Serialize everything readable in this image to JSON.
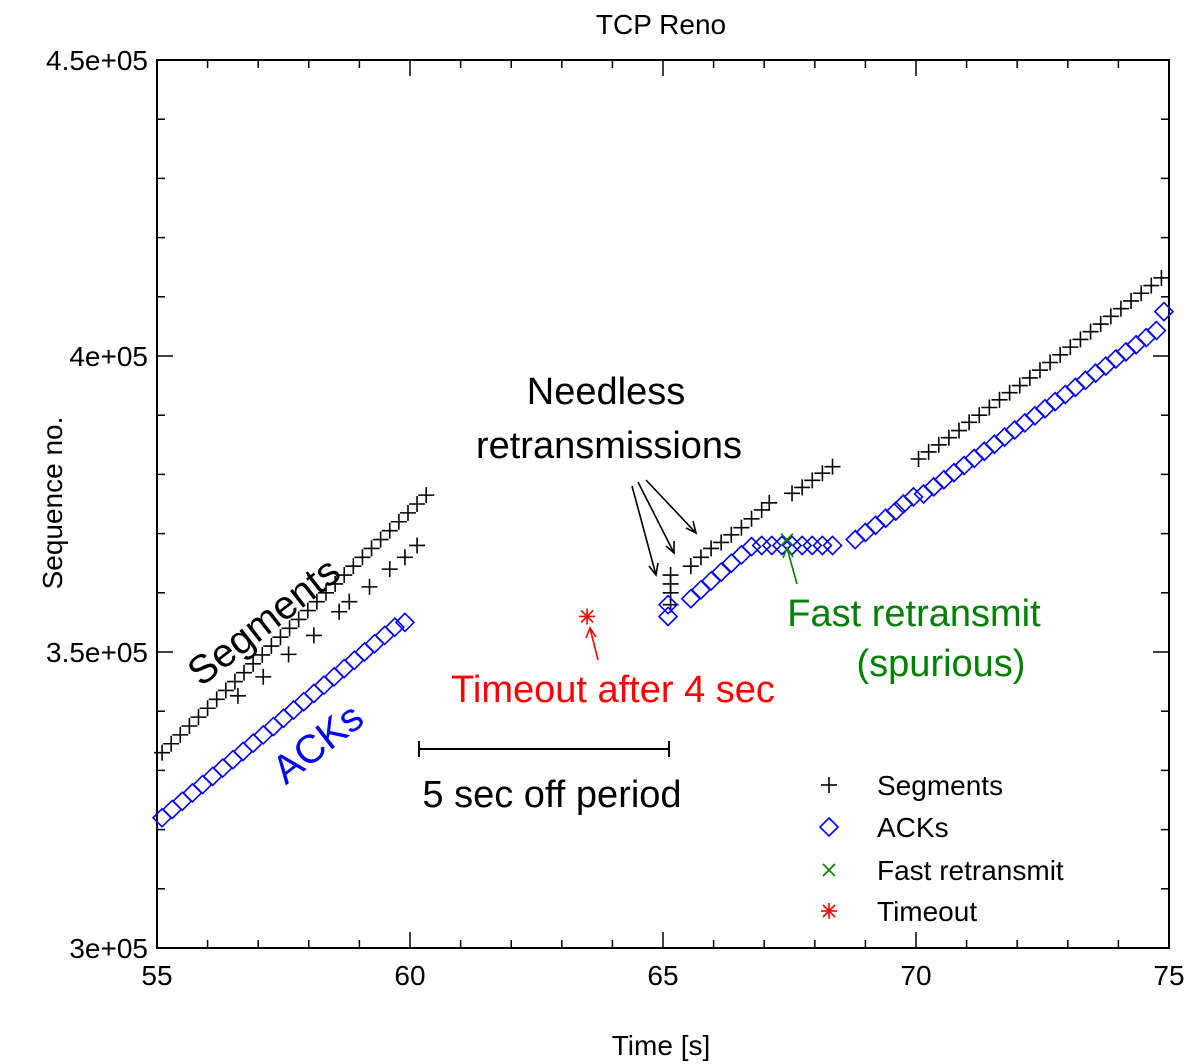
{
  "chart_data": {
    "type": "scatter",
    "title": "TCP Reno",
    "xlabel": "Time [s]",
    "ylabel": "Sequence no.",
    "xlim": [
      55,
      75
    ],
    "ylim": [
      300000,
      450000
    ],
    "x_ticks": [
      55,
      60,
      65,
      70,
      75
    ],
    "x_tick_labels": [
      "55",
      "60",
      "65",
      "70",
      "75"
    ],
    "y_ticks": [
      300000,
      350000,
      400000,
      450000
    ],
    "y_tick_labels": [
      "3e+05",
      "3.5e+05",
      "4e+05",
      "4.5e+05"
    ],
    "x_minor_step": 1,
    "y_minor_step": 10000,
    "grid": false,
    "legend_position": "bottom-right",
    "series": [
      {
        "name": "Segments",
        "marker": "plus",
        "color": "#000000",
        "points": [
          [
            55.1,
            333000
          ],
          [
            55.28,
            334500
          ],
          [
            55.46,
            336000
          ],
          [
            55.64,
            337500
          ],
          [
            55.82,
            339000
          ],
          [
            56.0,
            340500
          ],
          [
            56.18,
            342000
          ],
          [
            56.36,
            343500
          ],
          [
            56.54,
            345000
          ],
          [
            56.72,
            346500
          ],
          [
            56.9,
            348000
          ],
          [
            57.08,
            349500
          ],
          [
            57.26,
            351000
          ],
          [
            57.44,
            352500
          ],
          [
            57.62,
            354000
          ],
          [
            57.8,
            355500
          ],
          [
            57.98,
            357000
          ],
          [
            58.16,
            358500
          ],
          [
            58.34,
            360000
          ],
          [
            58.52,
            361500
          ],
          [
            58.7,
            363000
          ],
          [
            58.88,
            364500
          ],
          [
            59.06,
            366000
          ],
          [
            59.24,
            367500
          ],
          [
            59.42,
            369000
          ],
          [
            59.6,
            370500
          ],
          [
            59.78,
            372000
          ],
          [
            59.96,
            373500
          ],
          [
            60.14,
            375000
          ],
          [
            60.32,
            376500
          ],
          [
            56.6,
            342600
          ],
          [
            57.1,
            345800
          ],
          [
            57.6,
            349600
          ],
          [
            58.1,
            352800
          ],
          [
            58.6,
            356800
          ],
          [
            58.8,
            358500
          ],
          [
            59.2,
            361000
          ],
          [
            59.6,
            364000
          ],
          [
            59.9,
            366000
          ],
          [
            60.14,
            368000
          ],
          [
            65.15,
            358000
          ],
          [
            65.15,
            360000
          ],
          [
            65.15,
            361500
          ],
          [
            65.15,
            363000
          ],
          [
            65.55,
            364500
          ],
          [
            65.75,
            366000
          ],
          [
            65.95,
            367500
          ],
          [
            66.15,
            368500
          ],
          [
            66.35,
            369800
          ],
          [
            66.55,
            371000
          ],
          [
            66.75,
            372500
          ],
          [
            66.95,
            374000
          ],
          [
            67.1,
            375200
          ],
          [
            67.55,
            376800
          ],
          [
            67.75,
            377800
          ],
          [
            67.95,
            379000
          ],
          [
            68.15,
            380200
          ],
          [
            68.35,
            381300
          ],
          [
            70.05,
            382600
          ],
          [
            70.25,
            383800
          ],
          [
            70.45,
            385000
          ],
          [
            70.65,
            386200
          ],
          [
            70.85,
            387400
          ],
          [
            71.05,
            388800
          ],
          [
            71.25,
            390000
          ],
          [
            71.45,
            391300
          ],
          [
            71.65,
            392600
          ],
          [
            71.85,
            393800
          ],
          [
            72.05,
            395000
          ],
          [
            72.25,
            396300
          ],
          [
            72.45,
            397600
          ],
          [
            72.65,
            398900
          ],
          [
            72.85,
            400200
          ],
          [
            73.05,
            401500
          ],
          [
            73.25,
            402800
          ],
          [
            73.45,
            404100
          ],
          [
            73.65,
            405400
          ],
          [
            73.85,
            406700
          ],
          [
            74.05,
            408000
          ],
          [
            74.25,
            409300
          ],
          [
            74.45,
            410600
          ],
          [
            74.65,
            411900
          ],
          [
            74.85,
            413200
          ]
        ]
      },
      {
        "name": "ACKs",
        "marker": "diamond",
        "color": "#0000ff",
        "points": [
          [
            55.1,
            322000
          ],
          [
            55.3,
            323400
          ],
          [
            55.5,
            324800
          ],
          [
            55.7,
            326200
          ],
          [
            55.9,
            327600
          ],
          [
            56.1,
            329000
          ],
          [
            56.3,
            330400
          ],
          [
            56.5,
            331800
          ],
          [
            56.7,
            333200
          ],
          [
            56.9,
            334600
          ],
          [
            57.1,
            336000
          ],
          [
            57.3,
            337400
          ],
          [
            57.5,
            338800
          ],
          [
            57.7,
            340200
          ],
          [
            57.9,
            341600
          ],
          [
            58.1,
            343000
          ],
          [
            58.3,
            344400
          ],
          [
            58.5,
            345800
          ],
          [
            58.7,
            347200
          ],
          [
            58.9,
            348600
          ],
          [
            59.1,
            350000
          ],
          [
            59.3,
            351400
          ],
          [
            59.5,
            352800
          ],
          [
            59.7,
            354200
          ],
          [
            59.9,
            355000
          ],
          [
            65.1,
            356000
          ],
          [
            65.1,
            358000
          ],
          [
            65.55,
            359000
          ],
          [
            65.75,
            360500
          ],
          [
            65.95,
            362000
          ],
          [
            66.15,
            363500
          ],
          [
            66.35,
            365000
          ],
          [
            66.55,
            366400
          ],
          [
            66.75,
            367800
          ],
          [
            66.95,
            368000
          ],
          [
            67.15,
            368000
          ],
          [
            67.35,
            368000
          ],
          [
            67.55,
            368000
          ],
          [
            67.75,
            368000
          ],
          [
            67.95,
            368000
          ],
          [
            68.15,
            368000
          ],
          [
            68.35,
            368000
          ],
          [
            68.8,
            369000
          ],
          [
            69.0,
            370200
          ],
          [
            69.2,
            371400
          ],
          [
            69.4,
            372600
          ],
          [
            69.6,
            373800
          ],
          [
            69.75,
            375000
          ],
          [
            69.95,
            376200
          ],
          [
            70.15,
            376700
          ],
          [
            70.35,
            377900
          ],
          [
            70.55,
            379100
          ],
          [
            70.75,
            380300
          ],
          [
            70.95,
            381500
          ],
          [
            71.15,
            382700
          ],
          [
            71.35,
            383900
          ],
          [
            71.55,
            385100
          ],
          [
            71.75,
            386300
          ],
          [
            71.95,
            387500
          ],
          [
            72.15,
            388700
          ],
          [
            72.35,
            389900
          ],
          [
            72.55,
            391100
          ],
          [
            72.75,
            392300
          ],
          [
            72.95,
            393500
          ],
          [
            73.15,
            394700
          ],
          [
            73.35,
            395900
          ],
          [
            73.55,
            397100
          ],
          [
            73.75,
            398300
          ],
          [
            73.95,
            399500
          ],
          [
            74.15,
            400700
          ],
          [
            74.35,
            401900
          ],
          [
            74.55,
            403100
          ],
          [
            74.75,
            404300
          ],
          [
            74.9,
            407500
          ]
        ]
      },
      {
        "name": "Fast retransmit",
        "marker": "x",
        "color": "#008000",
        "points": [
          [
            67.45,
            369000
          ]
        ]
      },
      {
        "name": "Timeout",
        "marker": "asterisk",
        "color": "#ff0000",
        "points": [
          [
            63.5,
            356000
          ]
        ]
      }
    ],
    "annotations": [
      {
        "text": "Needless",
        "color": "#000000"
      },
      {
        "text": "retransmissions",
        "color": "#000000"
      },
      {
        "text": "Segments",
        "color": "#000000"
      },
      {
        "text": "ACKs",
        "color": "#0000ff"
      },
      {
        "text": "Timeout after 4 sec",
        "color": "#ff0000"
      },
      {
        "text": "Fast retransmit",
        "color": "#008000"
      },
      {
        "text": "(spurious)",
        "color": "#008000"
      },
      {
        "text": "5 sec off period",
        "color": "#000000"
      }
    ],
    "off_period": {
      "x_start": 60.2,
      "x_end": 65.1,
      "y": 333500
    }
  }
}
